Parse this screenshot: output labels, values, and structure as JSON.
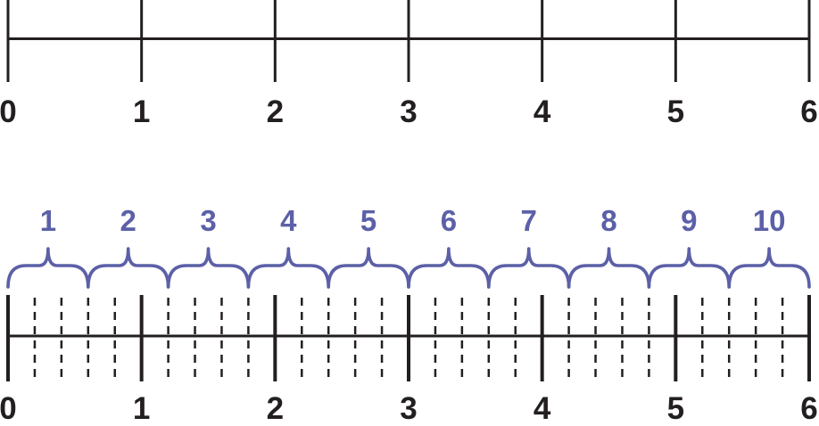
{
  "figure": {
    "description_hidden": false
  },
  "colors": {
    "background": "#ffffff",
    "ink": "#231f20",
    "accent": "#5b60a7"
  },
  "chart_data": [
    {
      "type": "number-line",
      "name": "top-number-line",
      "range": [
        0,
        6
      ],
      "major_tick_step": 1,
      "tick_values": [
        0,
        1,
        2,
        3,
        4,
        5,
        6
      ],
      "tick_labels": [
        "0",
        "1",
        "2",
        "3",
        "4",
        "5",
        "6"
      ],
      "minor_ticks": "none",
      "grid": "off",
      "legend": "none"
    },
    {
      "type": "number-line",
      "name": "bottom-number-line",
      "range": [
        0,
        6
      ],
      "major_tick_step": 1,
      "tick_values": [
        0,
        1,
        2,
        3,
        4,
        5,
        6
      ],
      "tick_labels": [
        "0",
        "1",
        "2",
        "3",
        "4",
        "5",
        "6"
      ],
      "minor_tick_step": 0.2,
      "minor_tick_style": "dashed",
      "grid": "off",
      "legend": "none",
      "braces": {
        "interval_span": 0.6,
        "labels": [
          "1",
          "2",
          "3",
          "4",
          "5",
          "6",
          "7",
          "8",
          "9",
          "10"
        ],
        "intervals": [
          [
            0.0,
            0.6
          ],
          [
            0.6,
            1.2
          ],
          [
            1.2,
            1.8
          ],
          [
            1.8,
            2.4
          ],
          [
            2.4,
            3.0
          ],
          [
            3.0,
            3.6
          ],
          [
            3.6,
            4.2
          ],
          [
            4.2,
            4.8
          ],
          [
            4.8,
            5.4
          ],
          [
            5.4,
            6.0
          ]
        ]
      }
    }
  ]
}
